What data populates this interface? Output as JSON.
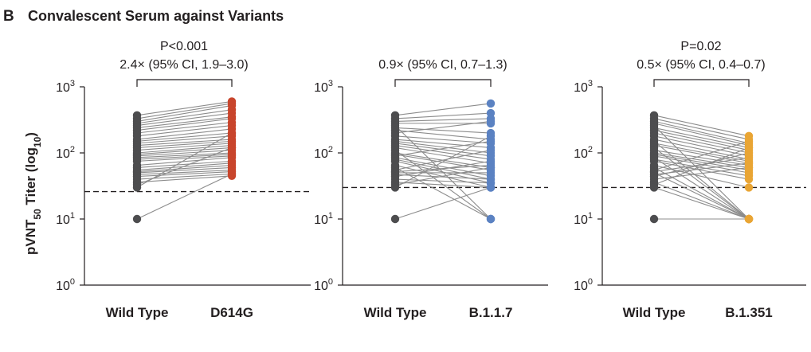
{
  "panel_letter": "B",
  "chart_data": [
    {
      "type": "scatter",
      "title": "Convalescent Serum against Variants",
      "ylabel": "pVNT50 Titer (log10)",
      "yscale": "log",
      "ylim": [
        1,
        1000
      ],
      "yticks": [
        1,
        10,
        100,
        1000
      ],
      "categories": [
        "Wild Type",
        "D614G"
      ],
      "colors": {
        "baseline": "#4d4d4f",
        "variant": "#c8452c",
        "line": "#8c8c8c"
      },
      "annotation": {
        "line1": "P<0.001",
        "line2": "2.4× (95% CI, 1.9–3.0)"
      },
      "threshold": 26,
      "pairs": [
        [
          370,
          600
        ],
        [
          330,
          560
        ],
        [
          300,
          520
        ],
        [
          280,
          450
        ],
        [
          260,
          400
        ],
        [
          240,
          350
        ],
        [
          220,
          330
        ],
        [
          200,
          290
        ],
        [
          180,
          260
        ],
        [
          160,
          230
        ],
        [
          150,
          200
        ],
        [
          140,
          180
        ],
        [
          130,
          160
        ],
        [
          120,
          150
        ],
        [
          110,
          140
        ],
        [
          100,
          130
        ],
        [
          95,
          120
        ],
        [
          90,
          110
        ],
        [
          85,
          100
        ],
        [
          80,
          95
        ],
        [
          75,
          90
        ],
        [
          65,
          85
        ],
        [
          60,
          75
        ],
        [
          55,
          70
        ],
        [
          52,
          65
        ],
        [
          50,
          60
        ],
        [
          47,
          55
        ],
        [
          44,
          52
        ],
        [
          40,
          48
        ],
        [
          36,
          45
        ],
        [
          33,
          120
        ],
        [
          30,
          200
        ],
        [
          10,
          48
        ]
      ]
    },
    {
      "type": "scatter",
      "ylim": [
        1,
        1000
      ],
      "yticks": [
        1,
        10,
        100,
        1000
      ],
      "yscale": "log",
      "categories": [
        "Wild Type",
        "B.1.1.7"
      ],
      "colors": {
        "baseline": "#4d4d4f",
        "variant": "#5b82c2",
        "line": "#8c8c8c"
      },
      "annotation": {
        "line1": "",
        "line2": "0.9× (95% CI, 0.7–1.3)"
      },
      "threshold": 30,
      "pairs": [
        [
          370,
          560
        ],
        [
          330,
          400
        ],
        [
          300,
          330
        ],
        [
          280,
          280
        ],
        [
          260,
          10
        ],
        [
          240,
          200
        ],
        [
          220,
          160
        ],
        [
          200,
          300
        ],
        [
          180,
          140
        ],
        [
          160,
          120
        ],
        [
          150,
          100
        ],
        [
          140,
          90
        ],
        [
          130,
          80
        ],
        [
          120,
          70
        ],
        [
          110,
          10
        ],
        [
          100,
          60
        ],
        [
          95,
          55
        ],
        [
          90,
          150
        ],
        [
          85,
          45
        ],
        [
          80,
          40
        ],
        [
          75,
          35
        ],
        [
          65,
          30
        ],
        [
          60,
          10
        ],
        [
          55,
          110
        ],
        [
          52,
          65
        ],
        [
          50,
          50
        ],
        [
          47,
          40
        ],
        [
          44,
          75
        ],
        [
          40,
          35
        ],
        [
          36,
          30
        ],
        [
          33,
          60
        ],
        [
          30,
          180
        ],
        [
          10,
          30
        ]
      ]
    },
    {
      "type": "scatter",
      "ylim": [
        1,
        1000
      ],
      "yticks": [
        1,
        10,
        100,
        1000
      ],
      "yscale": "log",
      "categories": [
        "Wild Type",
        "B.1.351"
      ],
      "colors": {
        "baseline": "#4d4d4f",
        "variant": "#e9a534",
        "line": "#8c8c8c"
      },
      "annotation": {
        "line1": "P=0.02",
        "line2": "0.5× (95% CI, 0.4–0.7)"
      },
      "threshold": 30,
      "pairs": [
        [
          370,
          180
        ],
        [
          330,
          160
        ],
        [
          300,
          140
        ],
        [
          280,
          130
        ],
        [
          260,
          10
        ],
        [
          240,
          120
        ],
        [
          220,
          110
        ],
        [
          200,
          100
        ],
        [
          180,
          90
        ],
        [
          160,
          80
        ],
        [
          150,
          10
        ],
        [
          140,
          75
        ],
        [
          130,
          70
        ],
        [
          120,
          10
        ],
        [
          110,
          65
        ],
        [
          100,
          60
        ],
        [
          95,
          55
        ],
        [
          90,
          50
        ],
        [
          85,
          10
        ],
        [
          80,
          45
        ],
        [
          75,
          40
        ],
        [
          65,
          30
        ],
        [
          60,
          10
        ],
        [
          55,
          150
        ],
        [
          52,
          85
        ],
        [
          50,
          10
        ],
        [
          47,
          70
        ],
        [
          44,
          100
        ],
        [
          40,
          60
        ],
        [
          36,
          10
        ],
        [
          33,
          120
        ],
        [
          30,
          10
        ],
        [
          10,
          10
        ]
      ]
    }
  ]
}
